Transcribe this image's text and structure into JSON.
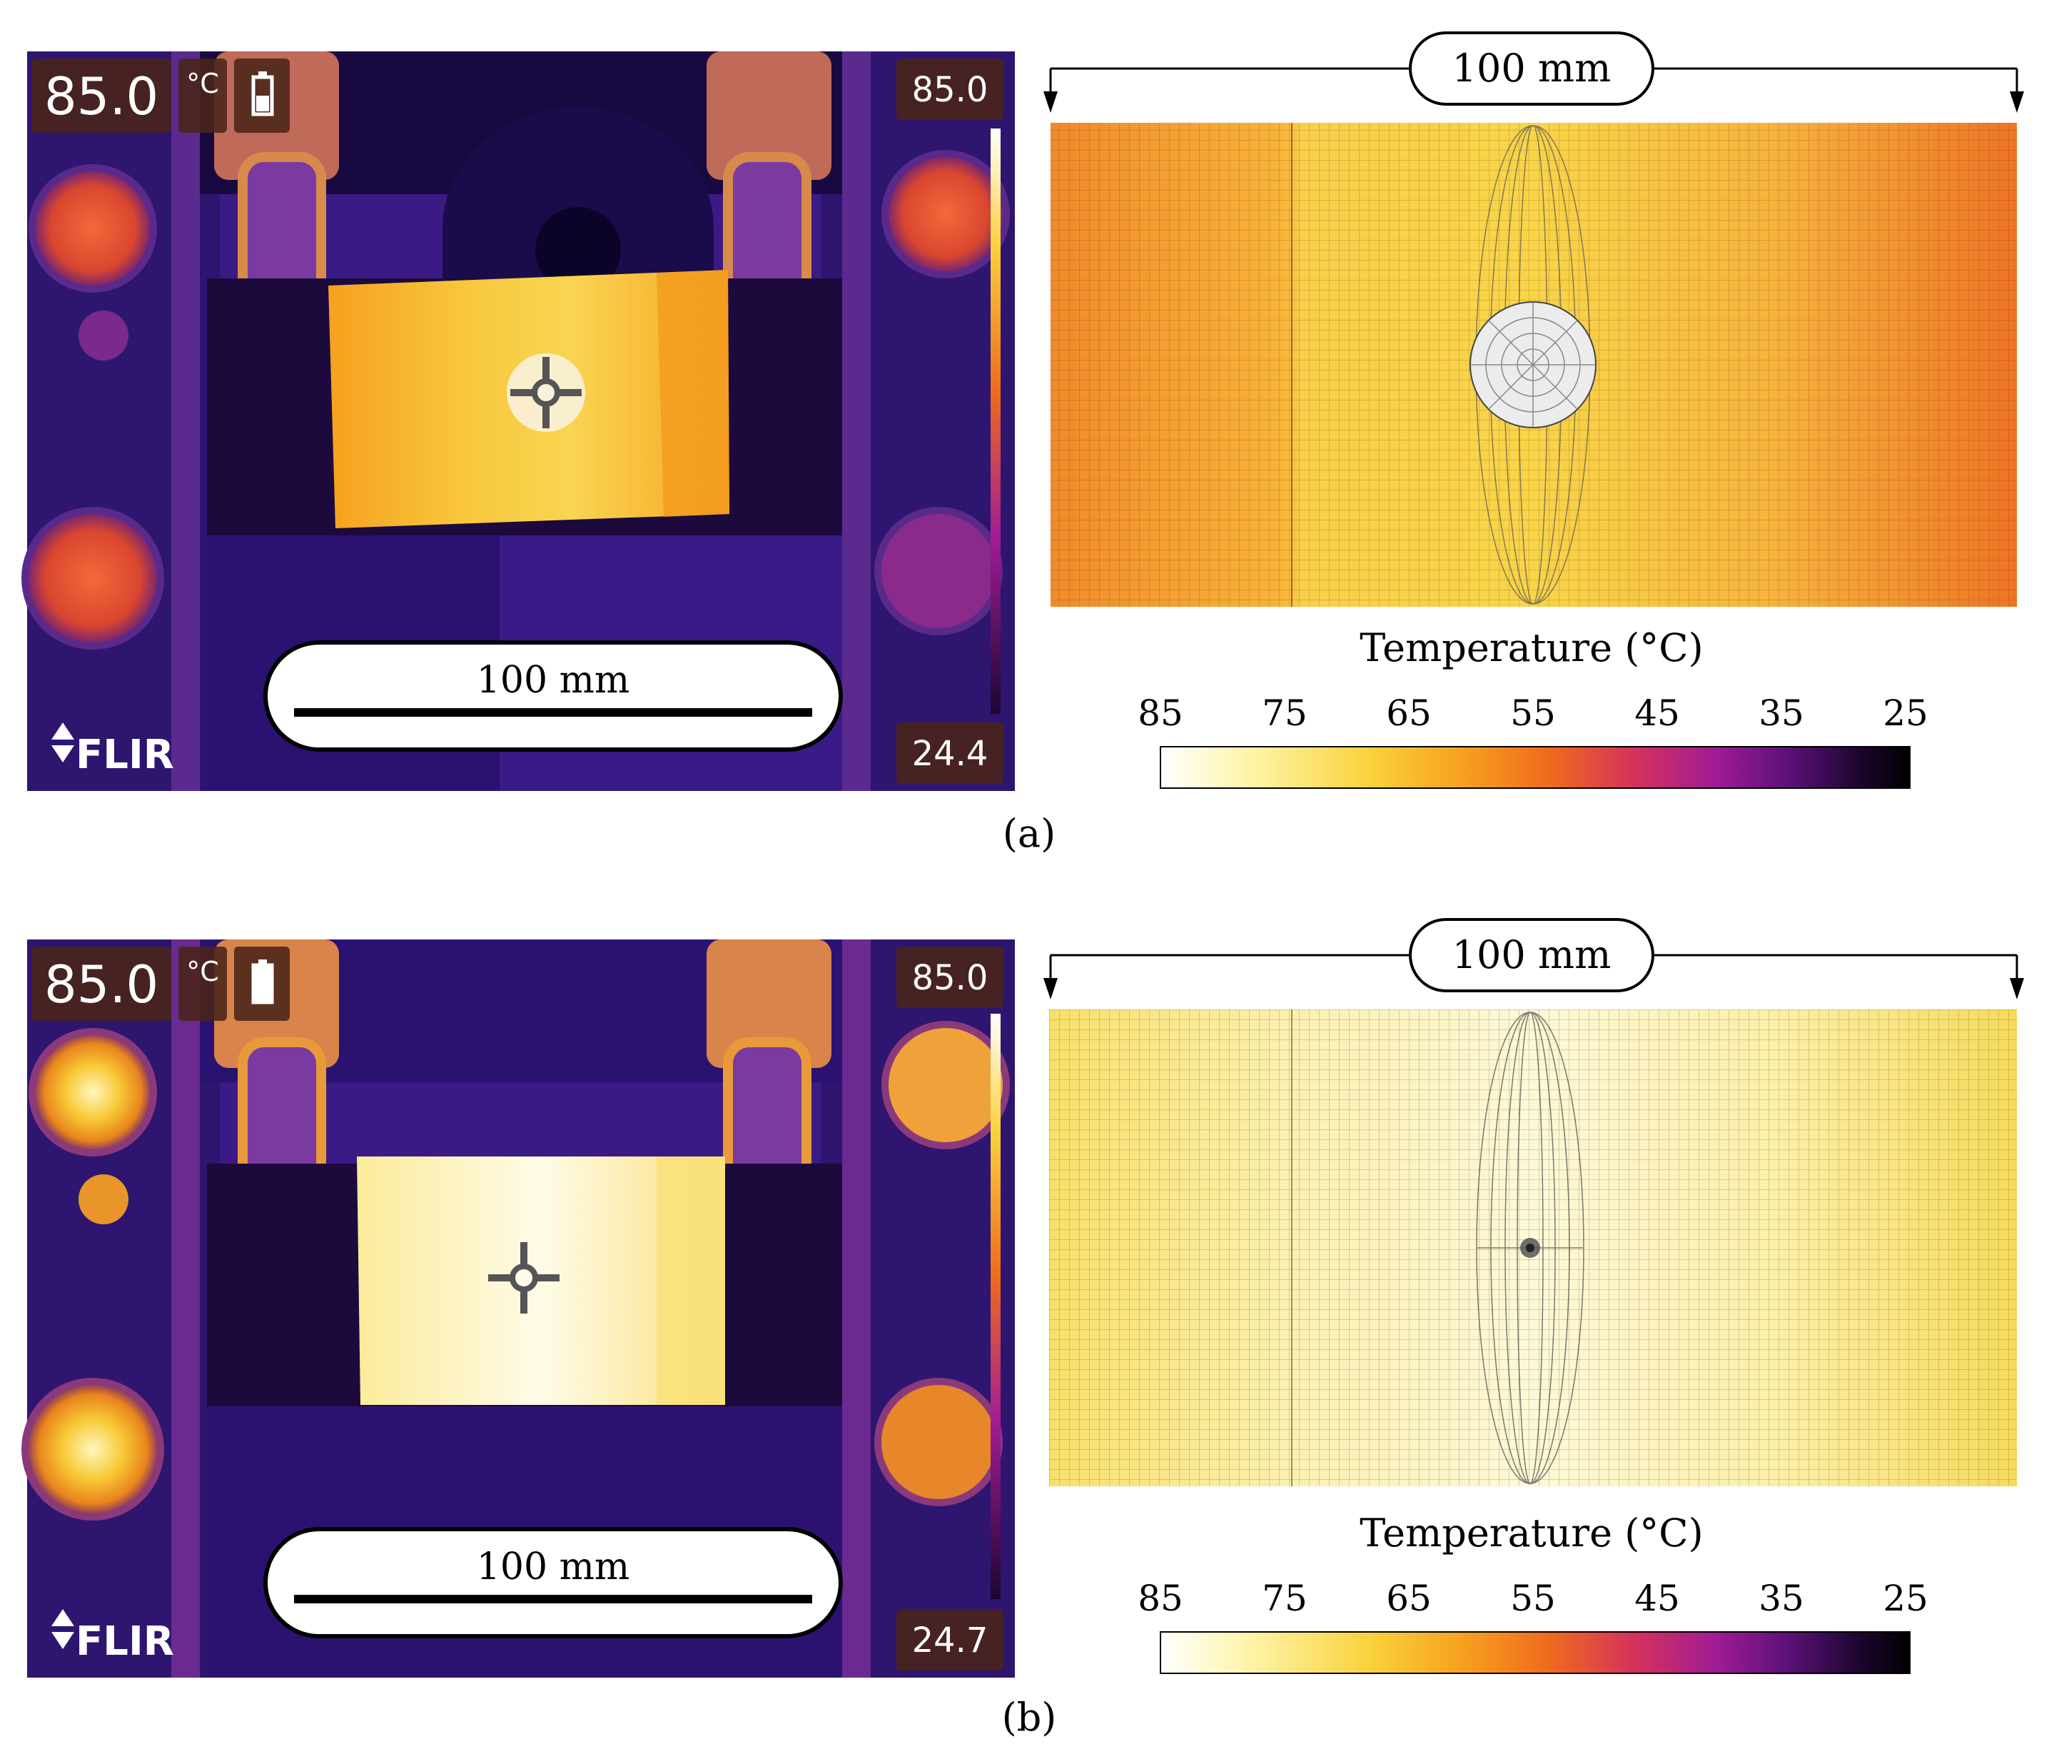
{
  "palette": {
    "thermal_stops": [
      "#ffffff",
      "#fdf4a8",
      "#f9d23c",
      "#f7a21f",
      "#ef6a1d",
      "#d6325a",
      "#a01c94",
      "#5a1175",
      "#1d0630",
      "#000000"
    ],
    "plate_a": "#f5a623",
    "plate_a_hot": "#f0c73b",
    "plate_b": "#fdf3b4",
    "plate_b_edge": "#f4dd5c",
    "camera_bg": "#3a1a8a",
    "frame": "#4d2a1a"
  },
  "panels": [
    {
      "caption": "(a)",
      "thermal": {
        "spot_temp": "85.0",
        "unit": "°C",
        "scale_max": "85.0",
        "scale_min": "24.4",
        "brand": "FLIR",
        "scale_bar_label": "100 mm",
        "icons": [
          "battery-icon",
          "crosshair-icon",
          "flir-logo-icon"
        ]
      },
      "simulation": {
        "dimension_label": "100 mm",
        "colorbar_title": "Temperature (°C)",
        "colorbar_ticks": [
          "85",
          "75",
          "65",
          "55",
          "45",
          "35",
          "25"
        ]
      }
    },
    {
      "caption": "(b)",
      "thermal": {
        "spot_temp": "85.0",
        "unit": "°C",
        "scale_max": "85.0",
        "scale_min": "24.7",
        "brand": "FLIR",
        "scale_bar_label": "100 mm",
        "icons": [
          "battery-icon",
          "crosshair-icon",
          "flir-logo-icon"
        ]
      },
      "simulation": {
        "dimension_label": "100 mm",
        "colorbar_title": "Temperature (°C)",
        "colorbar_ticks": [
          "85",
          "75",
          "65",
          "55",
          "45",
          "35",
          "25"
        ]
      }
    }
  ]
}
